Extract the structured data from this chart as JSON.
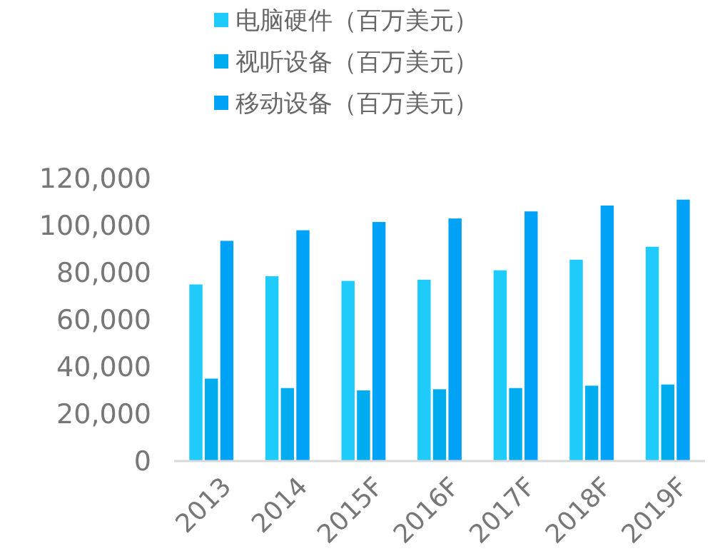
{
  "chart_data": {
    "type": "bar",
    "categories": [
      "2013",
      "2014",
      "2015F",
      "2016F",
      "2017F",
      "2018F",
      "2019F"
    ],
    "series": [
      {
        "name": "电脑硬件（百万美元）",
        "color": "#1ecbfa",
        "values": [
          75000,
          78500,
          76500,
          77000,
          81000,
          85500,
          91000
        ]
      },
      {
        "name": "视听设备（百万美元）",
        "color": "#00acf0",
        "values": [
          35000,
          31000,
          30000,
          30500,
          31000,
          32000,
          32500
        ]
      },
      {
        "name": "移动设备（百万美元）",
        "color": "#00a2f7",
        "values": [
          93500,
          98000,
          101500,
          103000,
          106000,
          108500,
          111000
        ]
      }
    ],
    "ylim": [
      0,
      120000
    ],
    "yticks": [
      {
        "value": 0,
        "label": "0"
      },
      {
        "value": 20000,
        "label": "20,000"
      },
      {
        "value": 40000,
        "label": "40,000"
      },
      {
        "value": 60000,
        "label": "60,000"
      },
      {
        "value": 80000,
        "label": "80,000"
      },
      {
        "value": 100000,
        "label": "100,000"
      },
      {
        "value": 120000,
        "label": "120,000"
      }
    ],
    "grid": false,
    "legend": "top left"
  }
}
